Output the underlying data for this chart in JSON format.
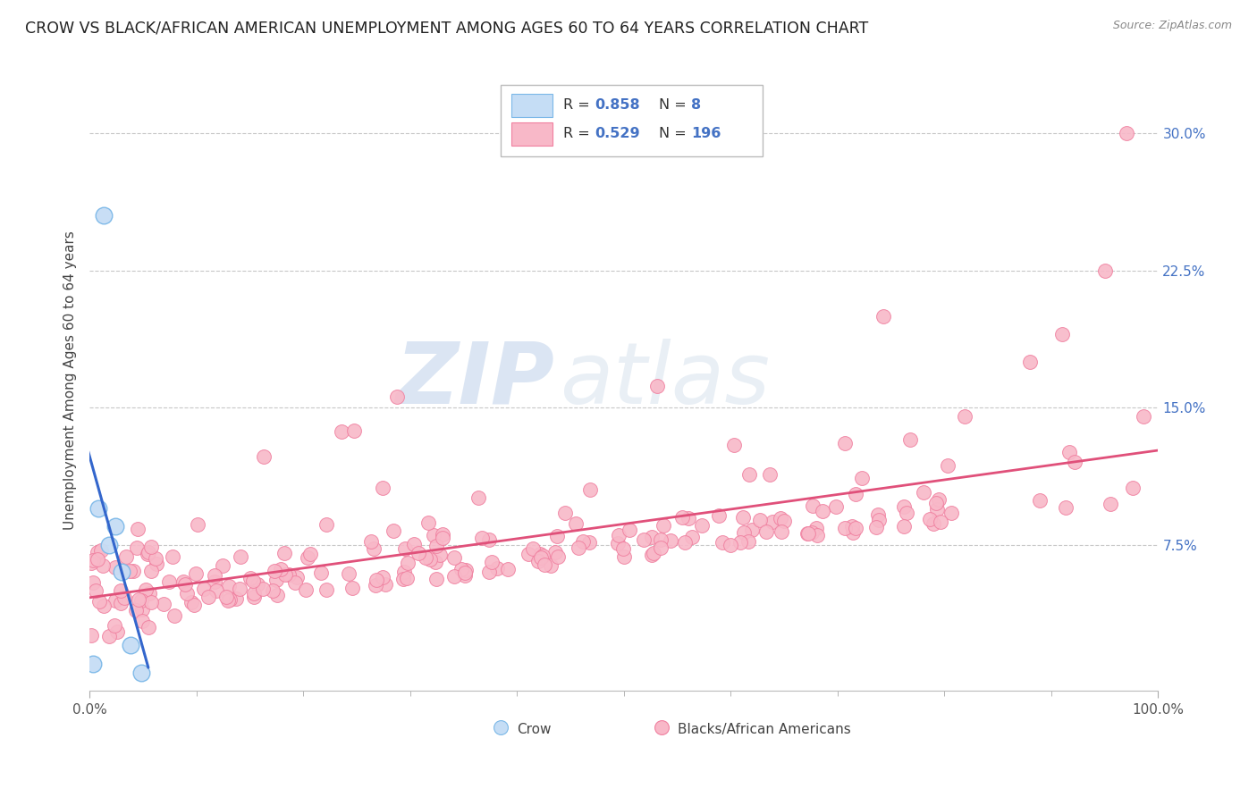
{
  "title": "CROW VS BLACK/AFRICAN AMERICAN UNEMPLOYMENT AMONG AGES 60 TO 64 YEARS CORRELATION CHART",
  "source": "Source: ZipAtlas.com",
  "ylabel": "Unemployment Among Ages 60 to 64 years",
  "legend_r1": "R = 0.858",
  "legend_n1": "N =  8",
  "legend_r2": "R = 0.529",
  "legend_n2": "N = 196",
  "legend_label1": "Crow",
  "legend_label2": "Blacks/African Americans",
  "crow_color": "#7bb8e8",
  "crow_fill": "#c5ddf5",
  "pink_color": "#f080a0",
  "pink_fill": "#f8b8c8",
  "blue_line_color": "#3366cc",
  "pink_line_color": "#e0507a",
  "background_color": "#ffffff",
  "watermark_zip": "ZIP",
  "watermark_atlas": "atlas",
  "grid_color": "#c8c8c8",
  "ytick_color": "#4472c4",
  "xtick_label_left": "0.0%",
  "xtick_label_right": "100.0%",
  "ytick_labels": [
    "7.5%",
    "15.0%",
    "22.5%",
    "30.0%"
  ],
  "ytick_values": [
    0.075,
    0.15,
    0.225,
    0.3
  ],
  "xlim": [
    0.0,
    1.0
  ],
  "ylim": [
    -0.005,
    0.335
  ]
}
